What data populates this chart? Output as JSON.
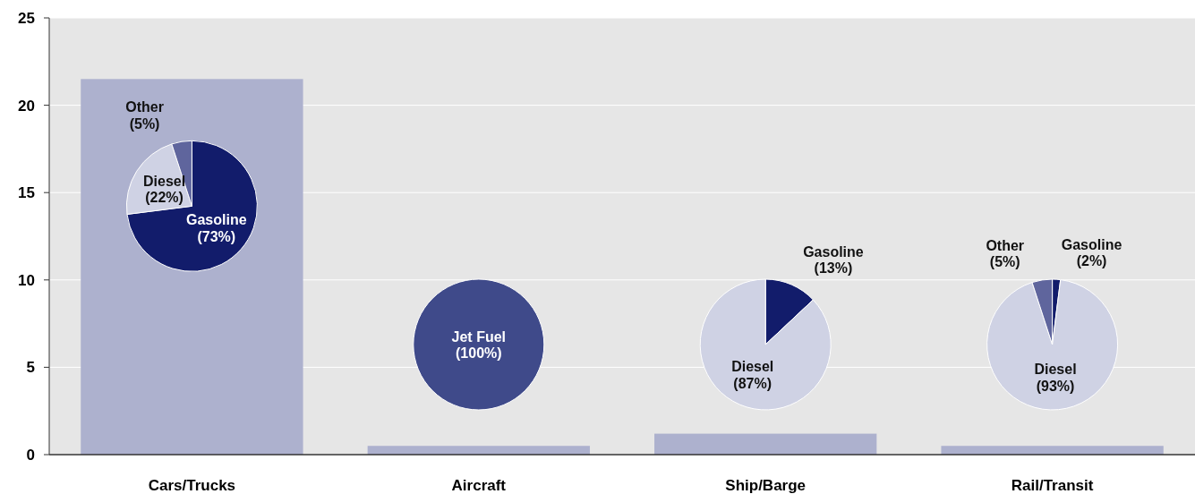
{
  "chart_data": [
    {
      "type": "bar",
      "categories": [
        "Cars/Trucks",
        "Aircraft",
        "Ship/Barge",
        "Rail/Transit"
      ],
      "values": [
        21.5,
        0.5,
        1.2,
        0.5
      ],
      "color": "#adb1ce",
      "ylim": [
        0,
        25
      ],
      "yticks": [
        0,
        5,
        10,
        15,
        20,
        25
      ],
      "grid": "y"
    },
    {
      "type": "pie",
      "categories": [
        "Gasoline",
        "Diesel",
        "Other"
      ],
      "values": [
        73,
        22,
        5
      ],
      "colors": [
        "#121c6b",
        "#cfd2e4",
        "#5f659d"
      ],
      "value_labels": [
        "(73%)",
        "(22%)",
        "(5%)"
      ]
    },
    {
      "type": "pie",
      "categories": [
        "Jet Fuel"
      ],
      "values": [
        100
      ],
      "colors": [
        "#3f4a8a"
      ],
      "value_labels": [
        "(100%)"
      ]
    },
    {
      "type": "pie",
      "categories": [
        "Gasoline",
        "Diesel"
      ],
      "values": [
        13,
        87
      ],
      "colors": [
        "#121c6b",
        "#cfd2e4"
      ],
      "value_labels": [
        "(13%)",
        "(87%)"
      ]
    },
    {
      "type": "pie",
      "categories": [
        "Gasoline",
        "Diesel",
        "Other"
      ],
      "values": [
        2,
        93,
        5
      ],
      "colors": [
        "#121c6b",
        "#cfd2e4",
        "#5f659d"
      ],
      "value_labels": [
        "(2%)",
        "(93%)",
        "(5%)"
      ]
    }
  ]
}
